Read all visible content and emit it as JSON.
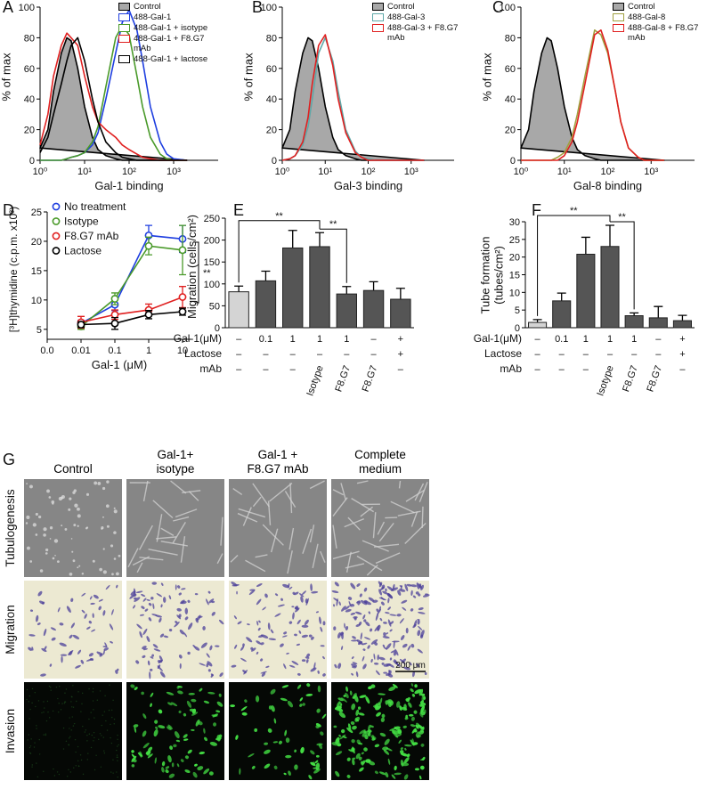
{
  "chart_data": [
    {
      "panel_label": "A",
      "type": "area",
      "xlabel": "Gal-1 binding",
      "ylabel": "% of max",
      "xscale": "log",
      "x": [
        1,
        1.5,
        2,
        3,
        4,
        5,
        7,
        10,
        15,
        20,
        30,
        50,
        70,
        100,
        150,
        200,
        300,
        500,
        700,
        1000,
        2000
      ],
      "xlim": [
        1,
        10000
      ],
      "xticks": [
        {
          "value": 1,
          "label": "10⁰"
        },
        {
          "value": 10,
          "label": "10¹"
        },
        {
          "value": 100,
          "label": "10²"
        },
        {
          "value": 1000,
          "label": "10³"
        }
      ],
      "ylim": [
        0,
        100
      ],
      "yticks": [
        0,
        20,
        40,
        60,
        80,
        100
      ],
      "legend": "upper right",
      "series": [
        {
          "name": "Control",
          "color": "#000000",
          "fill": "#a8a8a8",
          "values": [
            8,
            20,
            45,
            70,
            80,
            78,
            60,
            35,
            15,
            7,
            3,
            1,
            0,
            0,
            0,
            0,
            0,
            0,
            0,
            0,
            0
          ]
        },
        {
          "name": "488-Gal-1",
          "color": "#1f3fe0",
          "values": [
            0,
            0,
            0,
            0,
            1,
            2,
            3,
            5,
            10,
            18,
            40,
            70,
            90,
            98,
            85,
            65,
            35,
            12,
            4,
            1,
            0
          ]
        },
        {
          "name": "488-Gal-1 + isotype",
          "color": "#4a9a2a",
          "values": [
            0,
            0,
            0,
            0,
            1,
            2,
            3,
            5,
            12,
            22,
            48,
            80,
            88,
            82,
            55,
            35,
            15,
            4,
            1,
            0,
            0
          ]
        },
        {
          "name": "488-Gal-1 + F8.G7 mAb",
          "color": "#e02020",
          "values": [
            10,
            30,
            55,
            75,
            83,
            80,
            75,
            55,
            35,
            25,
            20,
            15,
            10,
            7,
            4,
            2,
            1,
            0,
            0,
            0,
            0
          ]
        },
        {
          "name": "488-Gal-1 + lactose",
          "color": "#000000",
          "values": [
            5,
            15,
            30,
            50,
            65,
            75,
            80,
            65,
            40,
            25,
            12,
            5,
            2,
            1,
            0,
            0,
            0,
            0,
            0,
            0,
            0
          ]
        }
      ]
    },
    {
      "panel_label": "B",
      "type": "area",
      "xlabel": "Gal-3 binding",
      "ylabel": "% of max",
      "xscale": "log",
      "x": [
        1,
        1.5,
        2,
        3,
        4,
        5,
        7,
        10,
        15,
        20,
        30,
        50,
        70,
        100,
        150,
        200,
        300,
        500,
        700,
        1000,
        2000
      ],
      "xlim": [
        1,
        10000
      ],
      "xticks": [
        {
          "value": 1,
          "label": "10⁰"
        },
        {
          "value": 10,
          "label": "10¹"
        },
        {
          "value": 100,
          "label": "10²"
        },
        {
          "value": 1000,
          "label": "10³"
        }
      ],
      "ylim": [
        0,
        100
      ],
      "yticks": [
        0,
        20,
        40,
        60,
        80,
        100
      ],
      "legend": "upper right",
      "series": [
        {
          "name": "Control",
          "color": "#000000",
          "fill": "#a8a8a8",
          "values": [
            8,
            20,
            45,
            70,
            80,
            78,
            60,
            35,
            15,
            7,
            3,
            1,
            0,
            0,
            0,
            0,
            0,
            0,
            0,
            0,
            0
          ]
        },
        {
          "name": "488-Gal-3",
          "color": "#5fa8a8",
          "values": [
            0,
            1,
            3,
            10,
            22,
            40,
            70,
            80,
            65,
            45,
            20,
            6,
            2,
            1,
            0,
            0,
            0,
            0,
            0,
            0,
            0
          ]
        },
        {
          "name": "488-Gal-3 + F8.G7 mAb",
          "color": "#e02020",
          "values": [
            0,
            1,
            3,
            12,
            28,
            50,
            75,
            82,
            62,
            40,
            18,
            5,
            2,
            0,
            0,
            0,
            0,
            0,
            0,
            0,
            0
          ]
        }
      ]
    },
    {
      "panel_label": "C",
      "type": "area",
      "xlabel": "Gal-8 binding",
      "ylabel": "% of max",
      "xscale": "log",
      "x": [
        1,
        1.5,
        2,
        3,
        4,
        5,
        7,
        10,
        15,
        20,
        30,
        50,
        70,
        100,
        150,
        200,
        300,
        500,
        700,
        1000,
        2000
      ],
      "xlim": [
        1,
        10000
      ],
      "xticks": [
        {
          "value": 1,
          "label": "10⁰"
        },
        {
          "value": 10,
          "label": "10¹"
        },
        {
          "value": 100,
          "label": "10²"
        },
        {
          "value": 1000,
          "label": "10³"
        }
      ],
      "ylim": [
        0,
        100
      ],
      "yticks": [
        0,
        20,
        40,
        60,
        80,
        100
      ],
      "legend": "upper right",
      "series": [
        {
          "name": "Control",
          "color": "#000000",
          "fill": "#a8a8a8",
          "values": [
            8,
            20,
            45,
            70,
            80,
            78,
            60,
            35,
            15,
            7,
            3,
            1,
            0,
            0,
            0,
            0,
            0,
            0,
            0,
            0,
            0
          ]
        },
        {
          "name": "488-Gal-8",
          "color": "#a0a040",
          "values": [
            0,
            0,
            0,
            0,
            0,
            0,
            2,
            5,
            15,
            30,
            55,
            85,
            82,
            70,
            45,
            25,
            8,
            2,
            0,
            0,
            0
          ]
        },
        {
          "name": "488-Gal-8 + F8.G7 mAb",
          "color": "#e02020",
          "values": [
            0,
            0,
            0,
            0,
            0,
            0,
            0,
            3,
            12,
            25,
            50,
            82,
            85,
            72,
            45,
            25,
            8,
            2,
            0,
            0,
            0
          ]
        }
      ]
    },
    {
      "panel_label": "D",
      "type": "line",
      "xlabel": "Gal-1 (μM)",
      "ylabel": "[³H]thymidine (c.p.m. x10³)",
      "categories": [
        "0.0",
        "0.01",
        "0.1",
        "1",
        "10"
      ],
      "ylim": [
        3.3,
        25
      ],
      "yticks": [
        5,
        10,
        15,
        20,
        25
      ],
      "legend": "upper left",
      "annotation": "**",
      "series": [
        {
          "name": "No treatment",
          "color": "#1f3fe0",
          "values": [
            null,
            6,
            9.2,
            21,
            20.4
          ],
          "errors": [
            null,
            0.5,
            1,
            1.7,
            2.3
          ]
        },
        {
          "name": "Isotype",
          "color": "#4a9a2a",
          "values": [
            null,
            5.5,
            10.2,
            19.2,
            18.5
          ],
          "errors": [
            null,
            0.5,
            1,
            1.5,
            4.2
          ]
        },
        {
          "name": "F8.G7 mAb",
          "color": "#e02020",
          "values": [
            null,
            6.2,
            7.5,
            8.3,
            10.5
          ],
          "errors": [
            null,
            1,
            0.8,
            1,
            1.8
          ]
        },
        {
          "name": "Lactose",
          "color": "#000000",
          "values": [
            null,
            5.8,
            6,
            7.5,
            8
          ],
          "errors": [
            null,
            0.5,
            1,
            0.7,
            0.6
          ]
        }
      ]
    },
    {
      "panel_label": "E",
      "type": "bar",
      "ylabel": "Migration (cells/cm²)",
      "ylim": [
        0,
        250
      ],
      "yticks": [
        0,
        50,
        100,
        150,
        200,
        250
      ],
      "values": [
        82,
        107,
        182,
        185,
        77,
        85,
        65
      ],
      "errors": [
        13,
        22,
        40,
        32,
        17,
        20,
        25
      ],
      "colors": [
        "#d4d4d4",
        "#555555",
        "#555555",
        "#555555",
        "#555555",
        "#555555",
        "#555555"
      ],
      "brackets": [
        {
          "from": 0,
          "to": 3,
          "label": "**"
        },
        {
          "from": 3,
          "to": 4,
          "label": "**"
        }
      ],
      "table": {
        "row_labels": [
          "Gal-1(μM)",
          "Lactose",
          "mAb"
        ],
        "rows": [
          [
            "–",
            "0.1",
            "1",
            "1",
            "1",
            "–",
            "+"
          ],
          [
            "–",
            "–",
            "–",
            "–",
            "–",
            "–",
            "+"
          ],
          [
            "–",
            "–",
            "–",
            "Isotype",
            "F8.G7",
            "F8.G7",
            "–"
          ]
        ]
      }
    },
    {
      "panel_label": "F",
      "type": "bar",
      "ylabel": "Tube formation (tubes/cm²)",
      "ylim": [
        0,
        30
      ],
      "yticks": [
        0,
        5,
        10,
        15,
        20,
        25,
        30
      ],
      "values": [
        1.5,
        7.6,
        20.8,
        23,
        3.4,
        2.8,
        2
      ],
      "errors": [
        0.8,
        2.2,
        4.8,
        6,
        0.8,
        3.2,
        1.5
      ],
      "colors": [
        "#d4d4d4",
        "#555555",
        "#555555",
        "#555555",
        "#555555",
        "#555555",
        "#555555"
      ],
      "brackets": [
        {
          "from": 0,
          "to": 3,
          "label": "**"
        },
        {
          "from": 3,
          "to": 4,
          "label": "**"
        }
      ],
      "table": {
        "row_labels": [
          "Gal-1(μM)",
          "Lactose",
          "mAb"
        ],
        "rows": [
          [
            "–",
            "0.1",
            "1",
            "1",
            "1",
            "–",
            "+"
          ],
          [
            "–",
            "–",
            "–",
            "–",
            "–",
            "–",
            "+"
          ],
          [
            "–",
            "–",
            "–",
            "Isotype",
            "F8.G7",
            "F8.G7",
            "–"
          ]
        ]
      }
    }
  ],
  "image_panel": {
    "panel_label": "G",
    "columns": [
      "Control",
      "Gal-1+ isotype",
      "Gal-1 + F8.G7 mAb",
      "Complete medium"
    ],
    "rows": [
      "Tubulogenesis",
      "Migration",
      "Invasion"
    ],
    "scale_bar": "200 μm"
  }
}
